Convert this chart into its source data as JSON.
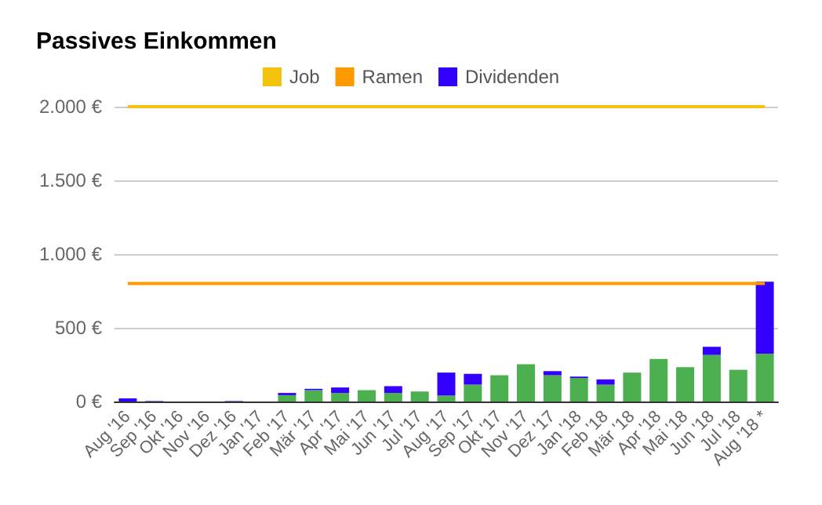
{
  "chart_data": {
    "type": "bar",
    "title": "Passives Einkommen",
    "categories": [
      "Aug '16",
      "Sep '16",
      "Okt '16",
      "Nov '16",
      "Dez '16",
      "Jan '17",
      "Feb '17",
      "Mär '17",
      "Apr '17",
      "Mai '17",
      "Jun '17",
      "Jul '17",
      "Aug '17",
      "Sep '17",
      "Okt '17",
      "Nov '17",
      "Dez '17",
      "Jan '18",
      "Feb '18",
      "Mär '18",
      "Apr '18",
      "Mai '18",
      "Jun '18",
      "Jul '18",
      "Aug '18 *"
    ],
    "stacked": true,
    "legend": "top",
    "grid": "y",
    "marker": "none",
    "line_style": "solid",
    "ylim": [
      0,
      2000
    ],
    "yticks": [
      {
        "value": 0,
        "label": "0 €"
      },
      {
        "value": 500,
        "label": "500 €"
      },
      {
        "value": 1000,
        "label": "1.000 €"
      },
      {
        "value": 1500,
        "label": "1.500 €"
      },
      {
        "value": 2000,
        "label": "2.000 €"
      }
    ],
    "series": [
      {
        "name": "Job",
        "type": "line",
        "color": "#f4c20d",
        "values": [
          2000,
          2000,
          2000,
          2000,
          2000,
          2000,
          2000,
          2000,
          2000,
          2000,
          2000,
          2000,
          2000,
          2000,
          2000,
          2000,
          2000,
          2000,
          2000,
          2000,
          2000,
          2000,
          2000,
          2000,
          2000
        ]
      },
      {
        "name": "Ramen",
        "type": "line",
        "color": "#ff9900",
        "values": [
          800,
          800,
          800,
          800,
          800,
          800,
          800,
          800,
          800,
          800,
          800,
          800,
          800,
          800,
          800,
          800,
          800,
          800,
          800,
          800,
          800,
          800,
          800,
          800,
          800
        ]
      },
      {
        "color": "#4caf50",
        "values": [
          0,
          0,
          0,
          0,
          0,
          0,
          43,
          77,
          58,
          77,
          58,
          68,
          40,
          114,
          178,
          252,
          178,
          160,
          114,
          196,
          289,
          233,
          316,
          215,
          325
        ]
      },
      {
        "name": "Dividenden",
        "color": "#3300ff",
        "values": [
          21,
          3,
          0,
          0,
          3,
          0,
          15,
          9,
          37,
          0,
          46,
          0,
          156,
          73,
          0,
          0,
          28,
          9,
          36,
          0,
          0,
          0,
          55,
          0,
          488
        ]
      }
    ]
  }
}
